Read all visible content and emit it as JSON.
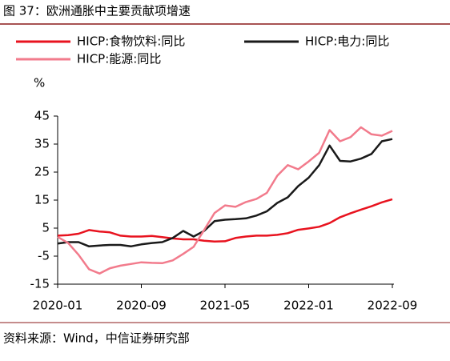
{
  "chart_data": {
    "type": "line",
    "title": "图 37：欧洲通胀中主要贡献项增速",
    "unit": "%",
    "source": "资料来源：Wind，中信证券研究部",
    "categories": [
      "2020-01",
      null,
      null,
      null,
      null,
      null,
      null,
      null,
      "2020-09",
      null,
      null,
      null,
      null,
      null,
      null,
      null,
      "2021-05",
      null,
      null,
      null,
      null,
      null,
      null,
      null,
      "2022-01",
      null,
      null,
      null,
      null,
      null,
      null,
      null,
      "2022-09"
    ],
    "series": [
      {
        "name": "HICP:食物饮料:同比",
        "color": "#e8131f",
        "values": [
          2.3,
          2.5,
          3.0,
          4.3,
          3.8,
          3.5,
          2.3,
          2.0,
          2.0,
          2.2,
          1.8,
          1.3,
          1.0,
          1.0,
          0.5,
          0.2,
          0.3,
          1.5,
          2.0,
          2.3,
          2.3,
          2.6,
          3.2,
          4.4,
          4.9,
          5.5,
          6.8,
          8.9,
          10.3,
          11.6,
          12.8,
          14.2,
          15.3
        ]
      },
      {
        "name": "HICP:电力:同比",
        "color": "#1a1a1a",
        "values": [
          -0.5,
          0,
          0,
          -1.5,
          -1.2,
          -1,
          -1,
          -1.5,
          -0.8,
          -0.3,
          0,
          1.5,
          4,
          2,
          4,
          7.5,
          8,
          8.2,
          8.5,
          9.5,
          11,
          14,
          16,
          20,
          23,
          27.5,
          34.5,
          29,
          28.8,
          29.8,
          31.5,
          36,
          36.8
        ]
      },
      {
        "name": "HICP:能源:同比",
        "color": "#f27b8c",
        "values": [
          1.9,
          -0.3,
          -4.5,
          -9.7,
          -11.2,
          -9.3,
          -8.4,
          -7.8,
          -7.2,
          -7.4,
          -7.5,
          -6.5,
          -4.2,
          -1.7,
          4.3,
          10.4,
          13.1,
          12.6,
          14.3,
          15.4,
          17.6,
          23.7,
          27.5,
          26,
          28.8,
          31.9,
          40,
          36,
          37.5,
          41,
          38.5,
          38,
          39.7
        ]
      }
    ],
    "ylim": [
      -15,
      45
    ],
    "yticks": [
      -15,
      -5,
      5,
      15,
      25,
      35,
      45
    ]
  }
}
